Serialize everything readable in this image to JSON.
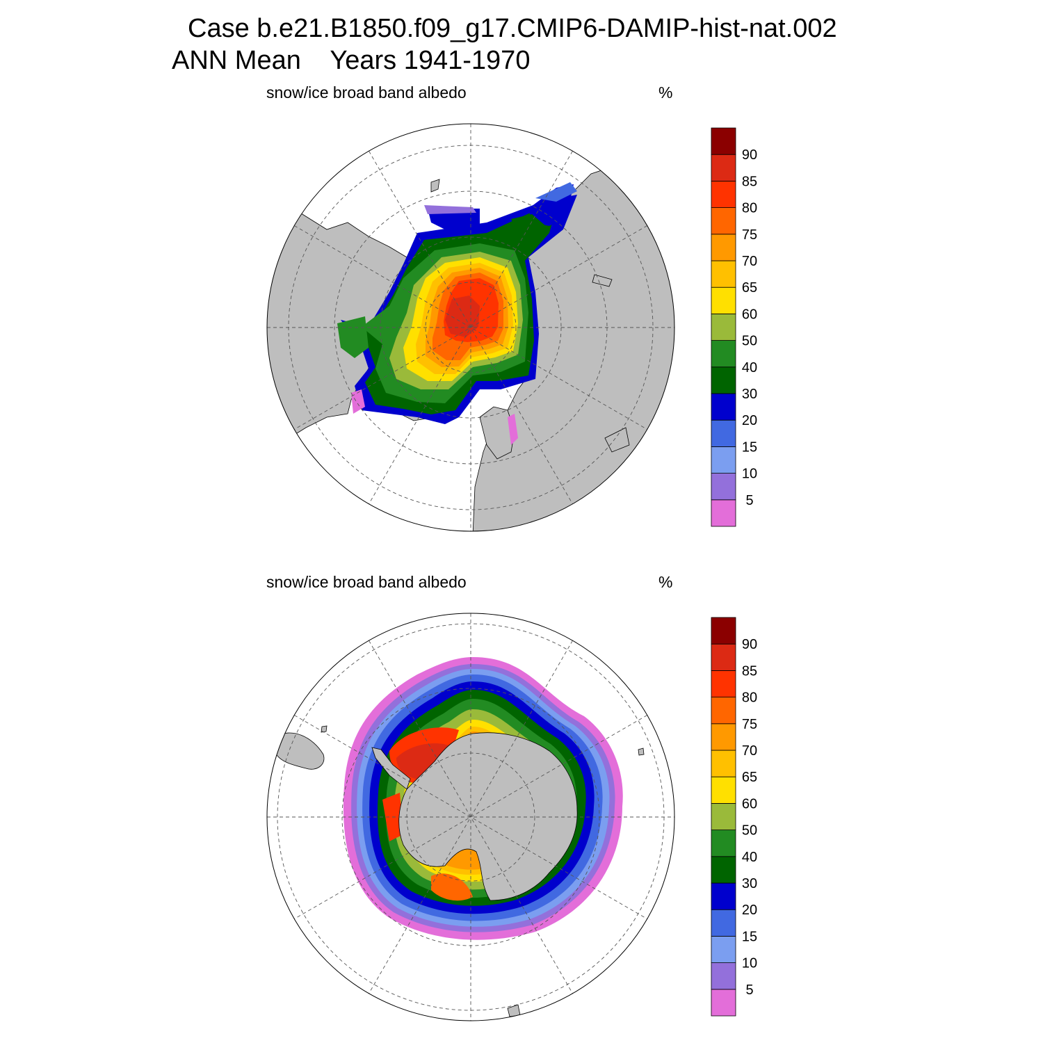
{
  "header": {
    "case_line": "Case b.e21.B1850.f09_g17.CMIP6-DAMIP-hist-nat.002",
    "period_line": "ANN Mean    Years 1941-1970"
  },
  "panels": [
    {
      "id": "north",
      "variable": "snow/ice broad band albedo",
      "units": "%"
    },
    {
      "id": "south",
      "variable": "snow/ice broad band albedo",
      "units": "%"
    }
  ],
  "colorbar": {
    "levels": [
      "5",
      "10",
      "15",
      "20",
      "30",
      "40",
      "50",
      "60",
      "65",
      "70",
      "75",
      "80",
      "85",
      "90"
    ],
    "colors": [
      "#e36ed9",
      "#9370db",
      "#7b9ef0",
      "#4169e1",
      "#0000cd",
      "#006400",
      "#228b22",
      "#9aba3a",
      "#ffe000",
      "#ffc000",
      "#ff9900",
      "#ff6600",
      "#ff3300",
      "#dc2a14",
      "#8b0000"
    ]
  },
  "map_colors": {
    "land": "#bebebe",
    "ocean": "#ffffff"
  }
}
